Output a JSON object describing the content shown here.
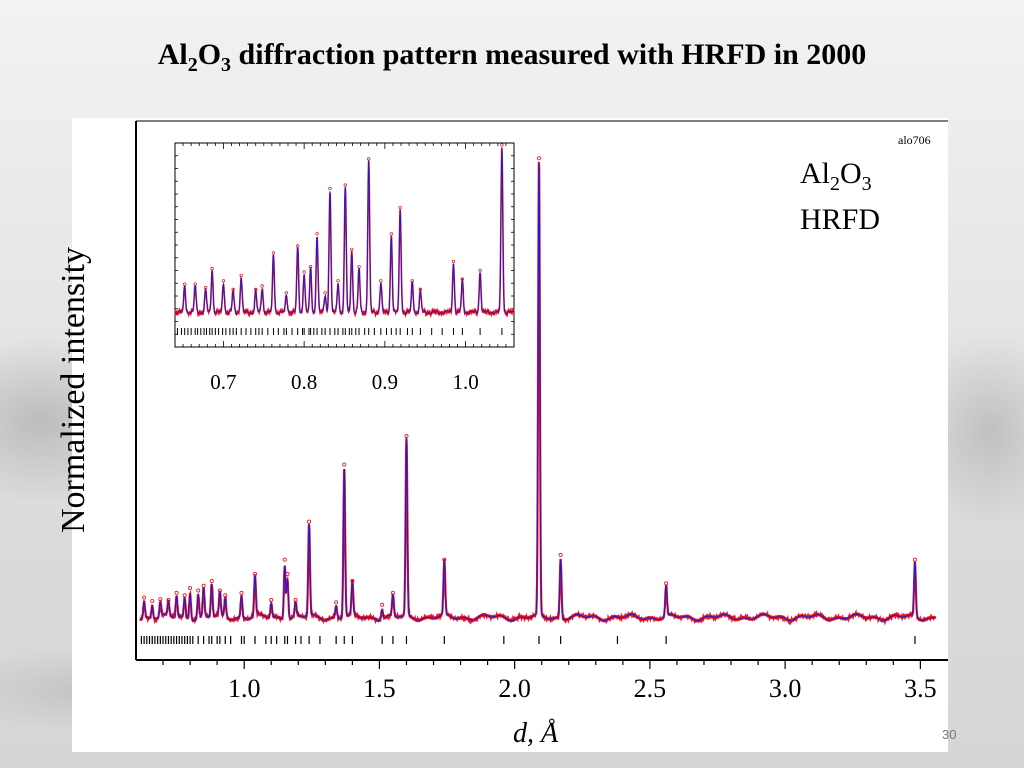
{
  "slide": {
    "title_parts": {
      "a": "Al",
      "s1": "2",
      "b": "O",
      "s2": "3",
      "rest": " diffraction pattern measured with HRFD in 2000"
    },
    "page_number": "30"
  },
  "chart_data": {
    "type": "line",
    "run_id": "alo706",
    "legend": {
      "formula_a": "Al",
      "formula_s1": "2",
      "formula_b": "O",
      "formula_s2": "3",
      "instrument": "HRFD"
    },
    "ylabel": "Normalized intensity",
    "xlabel": "d, Å",
    "xlim": [
      0.6,
      3.58
    ],
    "ylim": [
      0,
      1.0
    ],
    "xticks": [
      "1.0",
      "1.5",
      "2.0",
      "2.5",
      "3.0",
      "3.5"
    ],
    "colors": {
      "observed": "#e8131e",
      "calculated": "#1a1ad6",
      "ticks": "#000000"
    },
    "series": [
      {
        "name": "observed (points)",
        "style": "red markers"
      },
      {
        "name": "calculated (profile)",
        "style": "blue line"
      }
    ],
    "background_level": 0.012,
    "peaks": [
      {
        "d": 0.63,
        "y": 0.035
      },
      {
        "d": 0.66,
        "y": 0.028
      },
      {
        "d": 0.69,
        "y": 0.032
      },
      {
        "d": 0.72,
        "y": 0.03
      },
      {
        "d": 0.75,
        "y": 0.045
      },
      {
        "d": 0.78,
        "y": 0.04
      },
      {
        "d": 0.8,
        "y": 0.055
      },
      {
        "d": 0.83,
        "y": 0.05
      },
      {
        "d": 0.85,
        "y": 0.06
      },
      {
        "d": 0.88,
        "y": 0.07
      },
      {
        "d": 0.91,
        "y": 0.05
      },
      {
        "d": 0.93,
        "y": 0.04
      },
      {
        "d": 0.99,
        "y": 0.045
      },
      {
        "d": 1.04,
        "y": 0.085
      },
      {
        "d": 1.1,
        "y": 0.03
      },
      {
        "d": 1.15,
        "y": 0.115
      },
      {
        "d": 1.16,
        "y": 0.085
      },
      {
        "d": 1.19,
        "y": 0.03
      },
      {
        "d": 1.24,
        "y": 0.195
      },
      {
        "d": 1.34,
        "y": 0.025
      },
      {
        "d": 1.37,
        "y": 0.315
      },
      {
        "d": 1.4,
        "y": 0.07
      },
      {
        "d": 1.51,
        "y": 0.02
      },
      {
        "d": 1.55,
        "y": 0.045
      },
      {
        "d": 1.6,
        "y": 0.375
      },
      {
        "d": 1.74,
        "y": 0.115
      },
      {
        "d": 2.09,
        "y": 0.96
      },
      {
        "d": 2.17,
        "y": 0.125
      },
      {
        "d": 2.56,
        "y": 0.065
      },
      {
        "d": 3.48,
        "y": 0.115
      }
    ],
    "reflection_ticks": [
      0.62,
      0.63,
      0.64,
      0.65,
      0.66,
      0.67,
      0.68,
      0.69,
      0.7,
      0.71,
      0.72,
      0.73,
      0.74,
      0.75,
      0.76,
      0.77,
      0.78,
      0.79,
      0.8,
      0.81,
      0.83,
      0.85,
      0.87,
      0.88,
      0.9,
      0.91,
      0.93,
      0.95,
      0.99,
      1.0,
      1.04,
      1.08,
      1.1,
      1.12,
      1.15,
      1.16,
      1.19,
      1.21,
      1.24,
      1.28,
      1.34,
      1.37,
      1.4,
      1.51,
      1.55,
      1.6,
      1.74,
      1.96,
      2.09,
      2.17,
      2.38,
      2.56,
      3.48
    ],
    "inset": {
      "xlim": [
        0.64,
        1.06
      ],
      "ylim": [
        0,
        1.0
      ],
      "xticks": [
        "0.7",
        "0.8",
        "0.9",
        "1.0"
      ],
      "baseline": 0.05,
      "peaks": [
        {
          "d": 0.652,
          "y": 0.15
        },
        {
          "d": 0.665,
          "y": 0.15
        },
        {
          "d": 0.678,
          "y": 0.13
        },
        {
          "d": 0.686,
          "y": 0.24
        },
        {
          "d": 0.7,
          "y": 0.17
        },
        {
          "d": 0.712,
          "y": 0.12
        },
        {
          "d": 0.722,
          "y": 0.2
        },
        {
          "d": 0.74,
          "y": 0.12
        },
        {
          "d": 0.748,
          "y": 0.14
        },
        {
          "d": 0.762,
          "y": 0.33
        },
        {
          "d": 0.778,
          "y": 0.1
        },
        {
          "d": 0.792,
          "y": 0.37
        },
        {
          "d": 0.8,
          "y": 0.22
        },
        {
          "d": 0.808,
          "y": 0.25
        },
        {
          "d": 0.816,
          "y": 0.44
        },
        {
          "d": 0.826,
          "y": 0.1
        },
        {
          "d": 0.832,
          "y": 0.7
        },
        {
          "d": 0.842,
          "y": 0.17
        },
        {
          "d": 0.851,
          "y": 0.72
        },
        {
          "d": 0.859,
          "y": 0.35
        },
        {
          "d": 0.868,
          "y": 0.25
        },
        {
          "d": 0.88,
          "y": 0.87
        },
        {
          "d": 0.895,
          "y": 0.17
        },
        {
          "d": 0.908,
          "y": 0.44
        },
        {
          "d": 0.919,
          "y": 0.59
        },
        {
          "d": 0.934,
          "y": 0.17
        },
        {
          "d": 0.944,
          "y": 0.12
        },
        {
          "d": 0.985,
          "y": 0.28
        },
        {
          "d": 0.996,
          "y": 0.18
        },
        {
          "d": 1.018,
          "y": 0.23
        },
        {
          "d": 1.045,
          "y": 0.95
        }
      ],
      "reflection_ticks": [
        0.643,
        0.648,
        0.652,
        0.656,
        0.66,
        0.665,
        0.668,
        0.672,
        0.676,
        0.679,
        0.683,
        0.686,
        0.69,
        0.694,
        0.699,
        0.703,
        0.708,
        0.712,
        0.716,
        0.722,
        0.728,
        0.734,
        0.74,
        0.744,
        0.748,
        0.755,
        0.762,
        0.768,
        0.775,
        0.778,
        0.785,
        0.792,
        0.798,
        0.8,
        0.806,
        0.808,
        0.812,
        0.816,
        0.822,
        0.826,
        0.832,
        0.838,
        0.842,
        0.848,
        0.851,
        0.856,
        0.859,
        0.864,
        0.868,
        0.875,
        0.88,
        0.887,
        0.895,
        0.902,
        0.908,
        0.914,
        0.919,
        0.928,
        0.934,
        0.944,
        0.958,
        0.971,
        0.985,
        0.996,
        1.018,
        1.045
      ]
    }
  }
}
